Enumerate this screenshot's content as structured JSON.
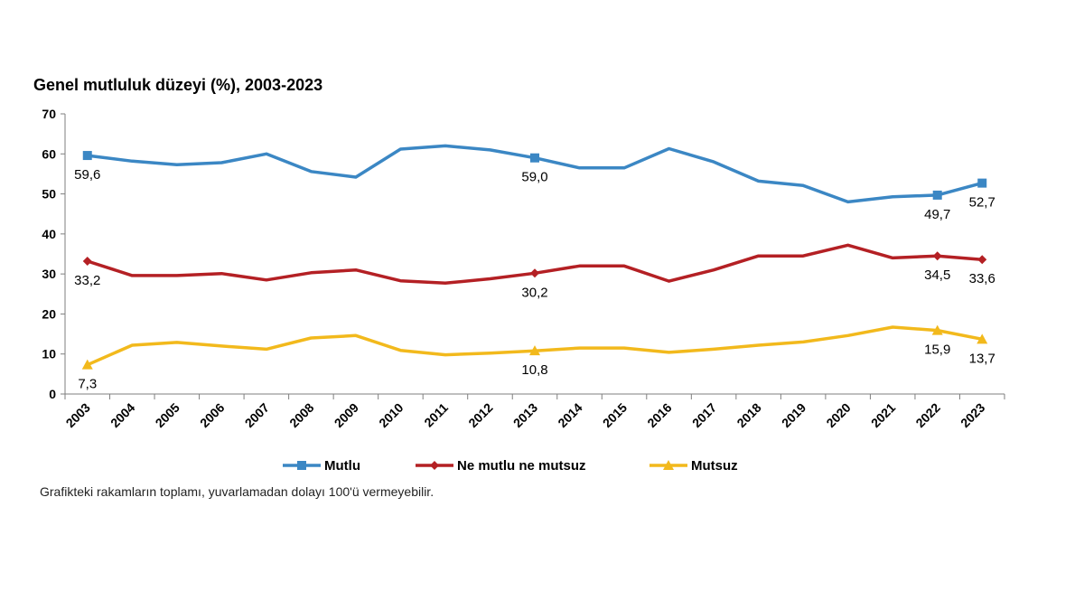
{
  "chart_data": {
    "type": "line",
    "title": "Genel mutluluk düzeyi (%), 2003-2023",
    "note": "Grafikteki rakamların toplamı, yuvarlamadan dolayı 100'ü vermeyebilir.",
    "categories": [
      "2003",
      "2004",
      "2005",
      "2006",
      "2007",
      "2008",
      "2009",
      "2010",
      "2011",
      "2012",
      "2013",
      "2014",
      "2015",
      "2016",
      "2017",
      "2018",
      "2019",
      "2020",
      "2021",
      "2022",
      "2023"
    ],
    "ylim": [
      0,
      70
    ],
    "yticks": [
      0,
      10,
      20,
      30,
      40,
      50,
      60,
      70
    ],
    "grid": false,
    "legend_position": "bottom",
    "series": [
      {
        "name": "Mutlu",
        "color": "#3B87C4",
        "marker": "square",
        "values": [
          59.6,
          58.2,
          57.3,
          57.8,
          60.0,
          55.6,
          54.2,
          61.2,
          62.0,
          61.0,
          59.0,
          56.5,
          56.5,
          61.3,
          58.0,
          53.2,
          52.1,
          48.0,
          49.3,
          49.7,
          52.7
        ],
        "labels": [
          {
            "category": "2003",
            "text": "59,6",
            "position": "below"
          },
          {
            "category": "2013",
            "text": "59,0",
            "position": "below"
          },
          {
            "category": "2022",
            "text": "49,7",
            "position": "below"
          },
          {
            "category": "2023",
            "text": "52,7",
            "position": "below"
          }
        ]
      },
      {
        "name": "Ne mutlu ne mutsuz",
        "color": "#B42024",
        "marker": "diamond",
        "values": [
          33.2,
          29.6,
          29.6,
          30.1,
          28.5,
          30.3,
          31.0,
          28.3,
          27.7,
          28.8,
          30.2,
          32.0,
          32.0,
          28.2,
          31.0,
          34.5,
          34.5,
          37.2,
          34.0,
          34.5,
          33.6
        ],
        "labels": [
          {
            "category": "2003",
            "text": "33,2",
            "position": "below"
          },
          {
            "category": "2013",
            "text": "30,2",
            "position": "below"
          },
          {
            "category": "2022",
            "text": "34,5",
            "position": "below"
          },
          {
            "category": "2023",
            "text": "33,6",
            "position": "below"
          }
        ]
      },
      {
        "name": "Mutsuz",
        "color": "#F2B91C",
        "marker": "triangle",
        "values": [
          7.3,
          12.2,
          12.9,
          12.0,
          11.2,
          14.0,
          14.6,
          10.9,
          9.8,
          10.2,
          10.8,
          11.5,
          11.5,
          10.4,
          11.2,
          12.2,
          13.0,
          14.6,
          16.7,
          15.9,
          13.7
        ],
        "labels": [
          {
            "category": "2003",
            "text": "7,3",
            "position": "below"
          },
          {
            "category": "2013",
            "text": "10,8",
            "position": "below"
          },
          {
            "category": "2022",
            "text": "15,9",
            "position": "below"
          },
          {
            "category": "2023",
            "text": "13,7",
            "position": "below"
          }
        ]
      }
    ]
  }
}
